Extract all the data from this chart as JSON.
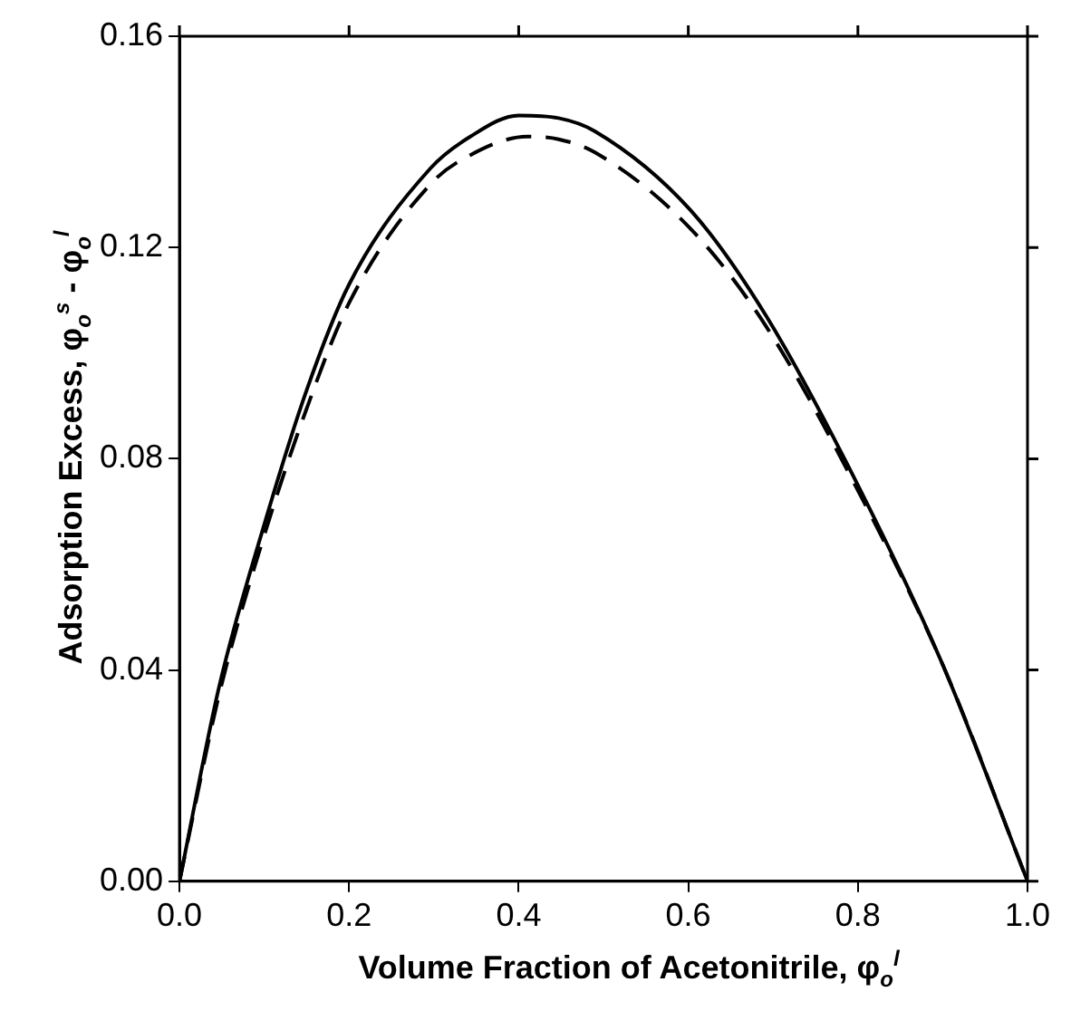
{
  "chart_data": {
    "type": "line",
    "xlabel": "Volume Fraction of Acetonitrile, φ$_{o}$$^{l}$",
    "ylabel": "Adsorption Excess, φ$_{o}$$^{s}$ - φ$_{o}$$^{l}$",
    "xlim": [
      0,
      1
    ],
    "ylim": [
      0,
      0.16
    ],
    "xticks": [
      {
        "value": 0,
        "label": "0.0"
      },
      0.2,
      0.4,
      0.6,
      0.8,
      {
        "value": 1,
        "label": "1.0"
      }
    ],
    "yticks": [
      {
        "value": 0,
        "label": "0.00"
      },
      0.04,
      0.08,
      0.12,
      0.16
    ],
    "grid": false,
    "legend": false,
    "marker": "none",
    "series": [
      {
        "color": "#000000",
        "line_style": "solid",
        "x": [
          0,
          0.047,
          0.099,
          0.15,
          0.2,
          0.296,
          0.343,
          0.4,
          0.447,
          0.49,
          0.603,
          0.692,
          0.8,
          0.9,
          1
        ],
        "values": [
          0,
          0.037,
          0.067,
          0.093,
          0.113,
          0.135,
          0.141,
          0.145,
          0.1445,
          0.142,
          0.127,
          0.107,
          0.075,
          0.041,
          0
        ]
      },
      {
        "color": "#000000",
        "line_style": "dashed",
        "x": [
          0,
          0.047,
          0.099,
          0.15,
          0.2,
          0.296,
          0.343,
          0.41,
          0.447,
          0.49,
          0.603,
          0.692,
          0.8,
          0.9,
          1
        ],
        "values": [
          0,
          0.0355,
          0.065,
          0.0895,
          0.1095,
          0.132,
          0.1375,
          0.141,
          0.1405,
          0.138,
          0.1235,
          0.105,
          0.074,
          0.041,
          0
        ]
      }
    ]
  }
}
